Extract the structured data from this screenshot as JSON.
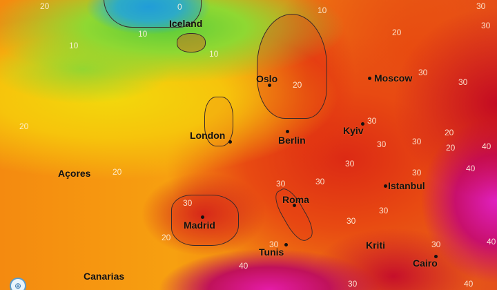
{
  "map": {
    "type": "temperature heatmap",
    "colors": {
      "cold": "#1e9ce0",
      "cool": "#5ccc3a",
      "mild": "#f2d80c",
      "warm": "#f48a10",
      "hot": "#dc2a14",
      "very_hot": "#c40a22",
      "extreme": "#e020c0"
    },
    "cities": [
      {
        "name": "Iceland",
        "has_dot": false
      },
      {
        "name": "Oslo",
        "has_dot": true
      },
      {
        "name": "Moscow",
        "has_dot": true
      },
      {
        "name": "London",
        "has_dot": true
      },
      {
        "name": "Berlin",
        "has_dot": true
      },
      {
        "name": "Kyiv",
        "has_dot": true
      },
      {
        "name": "Açores",
        "has_dot": false
      },
      {
        "name": "Madrid",
        "has_dot": true
      },
      {
        "name": "Roma",
        "has_dot": true
      },
      {
        "name": "Istanbul",
        "has_dot": true
      },
      {
        "name": "Tunis",
        "has_dot": true
      },
      {
        "name": "Kriti",
        "has_dot": false
      },
      {
        "name": "Cairo",
        "has_dot": true
      },
      {
        "name": "Canarias",
        "has_dot": false
      }
    ],
    "isotherm_labels": [
      "20",
      "0",
      "10",
      "10",
      "10",
      "10",
      "20",
      "20",
      "20",
      "30",
      "30",
      "30",
      "20",
      "30",
      "30",
      "30",
      "20",
      "30",
      "30",
      "30",
      "30",
      "40",
      "30",
      "30",
      "20",
      "30",
      "30",
      "40",
      "30",
      "40",
      "30",
      "40",
      "40",
      "20",
      "30"
    ],
    "logo_icon": "globe-icon"
  }
}
